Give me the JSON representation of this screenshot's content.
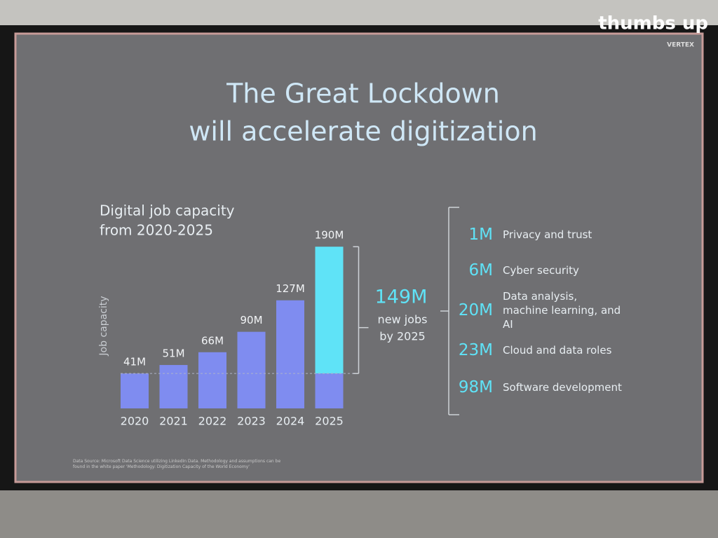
{
  "watermark": "thumbs up",
  "brand": "VERTEX",
  "chart_data": {
    "type": "bar",
    "title": [
      "The Great Lockdown",
      "will accelerate digitization"
    ],
    "subtitle": [
      "Digital job capacity",
      "from 2020-2025"
    ],
    "y_label": "Job capacity",
    "categories": [
      "2020",
      "2021",
      "2022",
      "2023",
      "2024",
      "2025"
    ],
    "values": [
      41,
      51,
      66,
      90,
      127,
      190
    ],
    "value_labels": [
      "41M",
      "51M",
      "66M",
      "90M",
      "127M",
      "190M"
    ],
    "color": "#7f8cf0",
    "highlight_color": "#5fe3f7",
    "ylim": [
      0,
      200
    ],
    "annotation": {
      "value": 149,
      "label": "149M",
      "text": [
        "new jobs",
        "by 2025"
      ]
    },
    "breakdown": [
      {
        "value": 1,
        "label": "1M",
        "text": "Privacy and trust"
      },
      {
        "value": 6,
        "label": "6M",
        "text": "Cyber security"
      },
      {
        "value": 20,
        "label": "20M",
        "text": "Data analysis, machine learning, and AI"
      },
      {
        "value": 23,
        "label": "23M",
        "text": "Cloud and data roles"
      },
      {
        "value": 98,
        "label": "98M",
        "text": "Software development"
      }
    ],
    "source": "Data Source: Microsoft Data Science utilizing LinkedIn Data. Methodology and assumptions can be found in the white paper 'Methodology: Digitization Capacity of the World Economy'"
  }
}
